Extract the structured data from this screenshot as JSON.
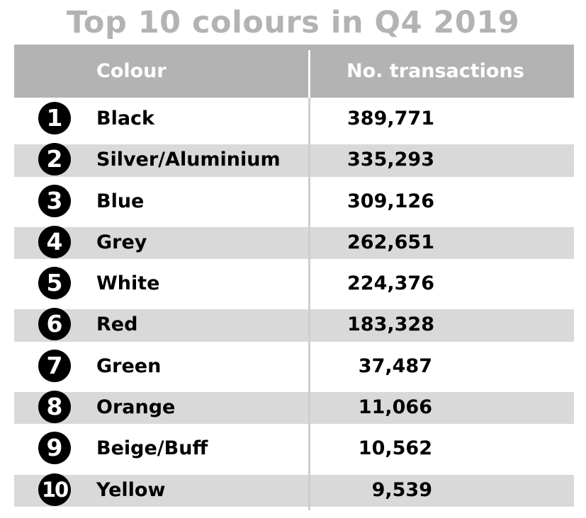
{
  "chart_data": {
    "type": "table",
    "title": "Top 10 colours in Q4 2019",
    "columns": [
      "Colour",
      "No. transactions"
    ],
    "rows": [
      {
        "rank": "1",
        "colour": "Black",
        "transactions": "389,771"
      },
      {
        "rank": "2",
        "colour": "Silver/Aluminium",
        "transactions": "335,293"
      },
      {
        "rank": "3",
        "colour": "Blue",
        "transactions": "309,126"
      },
      {
        "rank": "4",
        "colour": "Grey",
        "transactions": "262,651"
      },
      {
        "rank": "5",
        "colour": "White",
        "transactions": "224,376"
      },
      {
        "rank": "6",
        "colour": "Red",
        "transactions": "183,328"
      },
      {
        "rank": "7",
        "colour": "Green",
        "transactions": "37,487"
      },
      {
        "rank": "8",
        "colour": "Orange",
        "transactions": "11,066"
      },
      {
        "rank": "9",
        "colour": "Beige/Buff",
        "transactions": "10,562"
      },
      {
        "rank": "10",
        "colour": "Yellow",
        "transactions": "9,539"
      }
    ],
    "colors": {
      "title": "#b3b3b3",
      "header_bg": "#b3b3b3",
      "header_text": "#ffffff",
      "shaded_row": "#d9d9d9",
      "badge": "#000000"
    }
  }
}
